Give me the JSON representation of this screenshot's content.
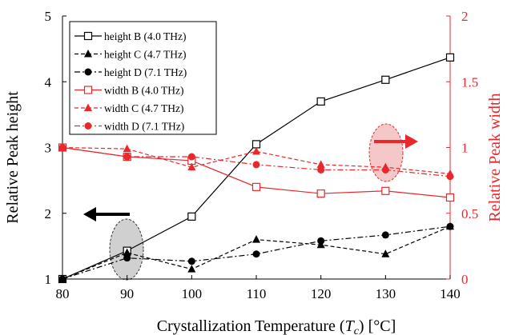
{
  "chart_data": {
    "type": "line",
    "x": [
      80,
      90,
      100,
      110,
      120,
      130,
      140
    ],
    "xlabel": {
      "prefix": "Crystallization Temperature (",
      "var": "T",
      "sub": "c",
      "suffix": ") [°C]"
    },
    "ylabel": "Relative  Peak height",
    "y2label": "Relative  Peak width",
    "xlim": [
      80,
      140
    ],
    "ylim": [
      1,
      5
    ],
    "y2lim": [
      0,
      2
    ],
    "x_ticks": [
      "80",
      "90",
      "100",
      "110",
      "120",
      "130",
      "140"
    ],
    "y_ticks": [
      "1",
      "2",
      "3",
      "4",
      "5"
    ],
    "y2_ticks": [
      "0",
      "0.5",
      "1",
      "1.5",
      "2"
    ],
    "grid": false,
    "legend_position": "top-left",
    "series": [
      {
        "name": "height B (4.0 THz)",
        "axis": "left",
        "color": "#000000",
        "dash": "solid",
        "marker": "square-open",
        "values": [
          1.0,
          1.43,
          1.95,
          3.05,
          3.7,
          4.03,
          4.37
        ]
      },
      {
        "name": "height C (4.7 THz)",
        "axis": "left",
        "color": "#000000",
        "dash": "dash",
        "marker": "triangle",
        "values": [
          1.0,
          1.4,
          1.15,
          1.6,
          1.52,
          1.38,
          1.8
        ]
      },
      {
        "name": "height D (7.1 THz)",
        "axis": "left",
        "color": "#000000",
        "dash": "dashdot",
        "marker": "circle",
        "values": [
          1.0,
          1.32,
          1.27,
          1.38,
          1.58,
          1.67,
          1.8
        ]
      },
      {
        "name": "width B (4.0 THz)",
        "axis": "right",
        "color": "#e8282b",
        "dash": "solid",
        "marker": "square-open",
        "values": [
          1.0,
          0.93,
          0.9,
          0.7,
          0.65,
          0.67,
          0.62
        ]
      },
      {
        "name": "width C (4.7 THz)",
        "axis": "right",
        "color": "#e8282b",
        "dash": "dash",
        "marker": "triangle",
        "values": [
          1.0,
          0.99,
          0.85,
          0.97,
          0.87,
          0.85,
          0.8
        ]
      },
      {
        "name": "width D (7.1 THz)",
        "axis": "right",
        "color": "#e8282b",
        "dash": "dashdot",
        "marker": "circle",
        "values": [
          1.0,
          0.93,
          0.93,
          0.87,
          0.83,
          0.83,
          0.78
        ]
      }
    ]
  },
  "colors": {
    "left_axis": "#000000",
    "right_axis": "#e8282b"
  },
  "annotations": {
    "left_arrow": {
      "direction": "left",
      "color": "#000000"
    },
    "right_arrow": {
      "direction": "right",
      "color": "#e8282b"
    },
    "left_ellipse_fill": "#d0d0d0",
    "right_ellipse_fill": "#f4c8c8"
  }
}
